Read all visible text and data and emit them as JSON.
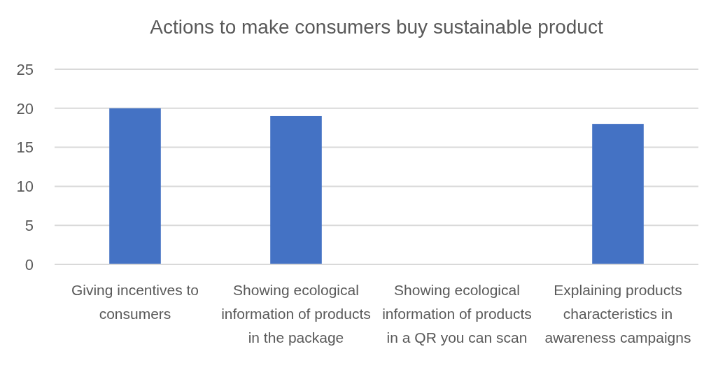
{
  "chart_data": {
    "type": "bar",
    "title": "Actions to make consumers buy sustainable product",
    "categories": [
      "Giving incentives to consumers",
      "Showing ecological information of products in the package",
      "Showing ecological information of products in a QR you can scan",
      "Explaining products characteristics in awareness campaigns"
    ],
    "values": [
      20,
      19,
      0,
      18
    ],
    "color": "#4472c4",
    "ylim": [
      0,
      25
    ],
    "yticks": [
      0,
      5,
      10,
      15,
      20,
      25
    ],
    "grid": "y"
  }
}
